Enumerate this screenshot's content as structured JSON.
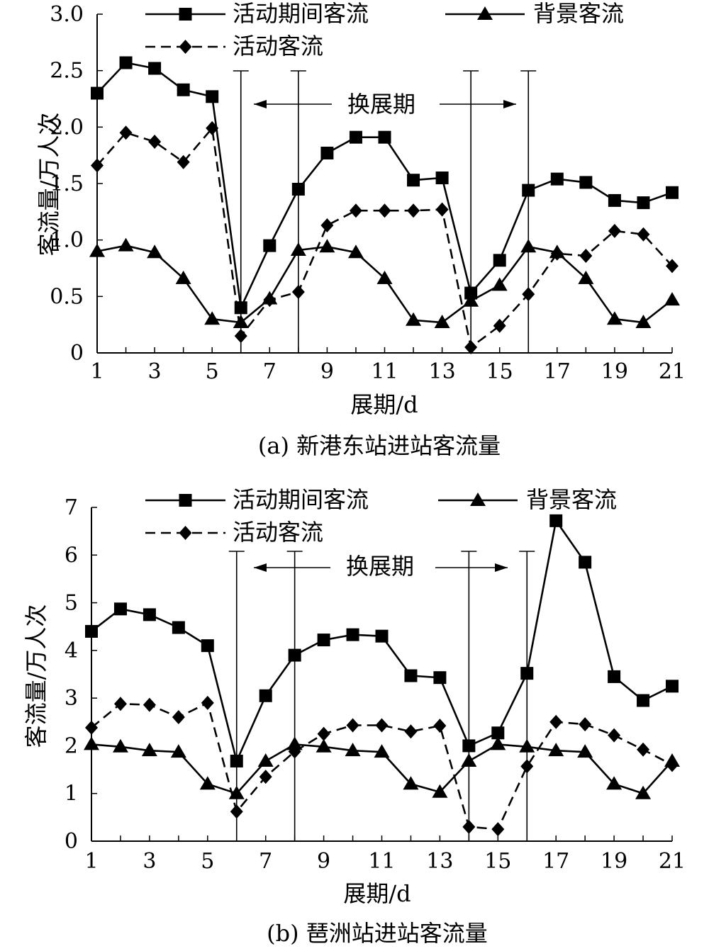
{
  "chart_data": [
    {
      "type": "line",
      "caption": "(a) 新港东站进站客流量",
      "xlabel": "展期/d",
      "ylabel": "客流量/万人次",
      "xlim": [
        1,
        21
      ],
      "ylim": [
        0,
        3.0
      ],
      "xticks": [
        "1",
        "3",
        "5",
        "7",
        "9",
        "11",
        "13",
        "15",
        "17",
        "19",
        "21"
      ],
      "yticks": [
        "0",
        "0.5",
        "1.0",
        "1.5",
        "2.0",
        "2.5",
        "3.0"
      ],
      "grid": false,
      "legend_placement": "top",
      "x": [
        1,
        2,
        3,
        4,
        5,
        6,
        7,
        8,
        9,
        10,
        11,
        12,
        13,
        14,
        15,
        16,
        17,
        18,
        19,
        20,
        21
      ],
      "series": [
        {
          "name": "活动期间客流",
          "marker": "square",
          "style": "solid",
          "values": [
            2.3,
            2.57,
            2.52,
            2.33,
            2.27,
            0.4,
            0.95,
            1.45,
            1.77,
            1.91,
            1.91,
            1.53,
            1.55,
            0.53,
            0.82,
            1.44,
            1.54,
            1.51,
            1.35,
            1.33,
            1.42
          ]
        },
        {
          "name": "背景客流",
          "marker": "triangle",
          "style": "solid",
          "values": [
            0.9,
            0.95,
            0.89,
            0.66,
            0.3,
            0.27,
            0.48,
            0.91,
            0.94,
            0.89,
            0.66,
            0.29,
            0.27,
            0.46,
            0.6,
            0.94,
            0.89,
            0.66,
            0.3,
            0.27,
            0.47
          ]
        },
        {
          "name": "活动客流",
          "marker": "diamond",
          "style": "dashed",
          "values": [
            1.66,
            1.95,
            1.87,
            1.69,
            1.99,
            0.15,
            0.47,
            0.54,
            1.13,
            1.26,
            1.26,
            1.26,
            1.27,
            0.05,
            0.24,
            0.52,
            0.88,
            0.86,
            1.08,
            1.05,
            0.77
          ]
        }
      ],
      "period_lines_x": [
        6,
        8,
        14,
        16
      ],
      "period_annotation": "换展期"
    },
    {
      "type": "line",
      "caption": "(b) 琶洲站进站客流量",
      "xlabel": "展期/d",
      "ylabel": "客流量/万人次",
      "xlim": [
        1,
        21
      ],
      "ylim": [
        0,
        7
      ],
      "xticks": [
        "1",
        "3",
        "5",
        "7",
        "9",
        "11",
        "13",
        "15",
        "17",
        "19",
        "21"
      ],
      "yticks": [
        "0",
        "1",
        "2",
        "3",
        "4",
        "5",
        "6",
        "7"
      ],
      "grid": false,
      "legend_placement": "top",
      "x": [
        1,
        2,
        3,
        4,
        5,
        6,
        7,
        8,
        9,
        10,
        11,
        12,
        13,
        14,
        15,
        16,
        17,
        18,
        19,
        20,
        21
      ],
      "series": [
        {
          "name": "活动期间客流",
          "marker": "square",
          "style": "solid",
          "values": [
            4.4,
            4.87,
            4.75,
            4.48,
            4.1,
            1.68,
            3.05,
            3.9,
            4.22,
            4.33,
            4.3,
            3.47,
            3.43,
            2.0,
            2.27,
            3.52,
            6.72,
            5.85,
            3.45,
            2.95,
            3.25
          ]
        },
        {
          "name": "背景客流",
          "marker": "triangle",
          "style": "solid",
          "values": [
            2.03,
            1.98,
            1.9,
            1.87,
            1.2,
            1.0,
            1.68,
            2.03,
            1.98,
            1.9,
            1.87,
            1.2,
            1.03,
            1.68,
            2.03,
            1.98,
            1.9,
            1.87,
            1.2,
            1.0,
            1.68
          ]
        },
        {
          "name": "活动客流",
          "marker": "diamond",
          "style": "dashed",
          "values": [
            2.38,
            2.88,
            2.86,
            2.6,
            2.9,
            0.62,
            1.35,
            1.88,
            2.25,
            2.43,
            2.43,
            2.3,
            2.42,
            0.3,
            0.25,
            1.57,
            2.5,
            2.45,
            2.22,
            1.92,
            1.6
          ]
        }
      ],
      "period_lines_x": [
        6,
        8,
        14,
        16
      ],
      "period_annotation": "换展期"
    }
  ]
}
